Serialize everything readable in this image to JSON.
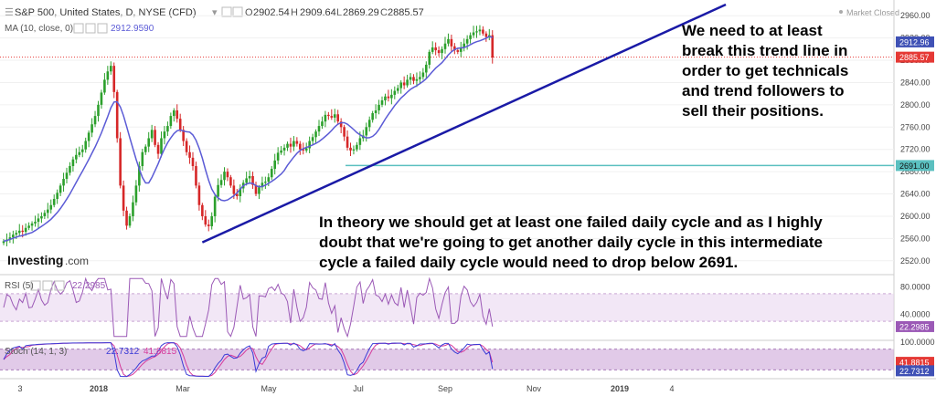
{
  "header": {
    "symbol": "S&P 500, United States, D, NYSE (CFD)",
    "open_label": "O",
    "open": "2902.54",
    "high_label": "H",
    "high": "2909.64",
    "low_label": "L",
    "low": "2869.29",
    "close_label": "C",
    "close": "2885.57",
    "ma_label": "MA (10, close, 0)",
    "ma_value": "2912.9590",
    "market_status": "Market Closed"
  },
  "brand": {
    "name": "Investing",
    "suffix": ".com"
  },
  "annotations": {
    "top": [
      "We need to at least",
      "break this trend line in",
      "order to get technicals",
      "and trend followers to",
      "sell their positions."
    ],
    "bottom": [
      "In theory we should get at least one failed daily cycle and as I highly",
      "doubt that we're going to get another daily cycle in this intermediate",
      "cycle a failed daily cycle would need to drop below 2691."
    ]
  },
  "colors": {
    "up": "#2ca02c",
    "down": "#d62728",
    "ma": "#5b5bd6",
    "trendline": "#1a1aa6",
    "support": "#5bc0c0",
    "rsi": "#9b59b6",
    "stoch_k": "#3a3ad6",
    "stoch_d": "#d63a9b",
    "band": "#e8d3ee",
    "price_tag": "#e53935",
    "ma_tag": "#3f51b5"
  },
  "chart_data": [
    {
      "type": "candlestick",
      "title": "S&P 500, United States, D, NYSE (CFD)",
      "ylim": [
        2500,
        2980
      ],
      "y_ticks": [
        "2960.00",
        "2920.00",
        "2880.00",
        "2840.00",
        "2800.00",
        "2760.00",
        "2720.00",
        "2680.00",
        "2640.00",
        "2600.00",
        "2560.00",
        "2520.00"
      ],
      "x_ticks": [
        "3",
        "2018",
        "Mar",
        "May",
        "Jul",
        "Sep",
        "Nov",
        "2019",
        "4"
      ],
      "closes": [
        2555,
        2558,
        2562,
        2567,
        2570,
        2574,
        2572,
        2579,
        2583,
        2587,
        2590,
        2596,
        2600,
        2606,
        2612,
        2620,
        2631,
        2642,
        2655,
        2667,
        2678,
        2690,
        2702,
        2710,
        2715,
        2720,
        2735,
        2750,
        2765,
        2780,
        2800,
        2822,
        2845,
        2860,
        2870,
        2823,
        2740,
        2655,
        2610,
        2583,
        2600,
        2625,
        2655,
        2690,
        2715,
        2725,
        2740,
        2755,
        2728,
        2712,
        2740,
        2752,
        2762,
        2780,
        2790,
        2775,
        2755,
        2735,
        2715,
        2705,
        2690,
        2655,
        2620,
        2600,
        2585,
        2582,
        2600,
        2635,
        2656,
        2665,
        2680,
        2670,
        2655,
        2640,
        2636,
        2650,
        2660,
        2668,
        2672,
        2656,
        2640,
        2652,
        2660,
        2662,
        2670,
        2685,
        2700,
        2714,
        2718,
        2723,
        2730,
        2725,
        2735,
        2730,
        2720,
        2718,
        2722,
        2735,
        2742,
        2752,
        2762,
        2770,
        2782,
        2780,
        2777,
        2783,
        2770,
        2760,
        2743,
        2723,
        2718,
        2720,
        2728,
        2740,
        2745,
        2760,
        2773,
        2785,
        2790,
        2800,
        2808,
        2815,
        2812,
        2818,
        2825,
        2830,
        2840,
        2835,
        2845,
        2850,
        2843,
        2846,
        2850,
        2858,
        2872,
        2895,
        2903,
        2898,
        2893,
        2900,
        2910,
        2918,
        2905,
        2898,
        2895,
        2902,
        2910,
        2918,
        2925,
        2930,
        2932,
        2935,
        2928,
        2922,
        2925,
        2885
      ],
      "ma_value": 2912.959,
      "series": [
        {
          "name": "MA (10, close, 0)",
          "last": 2912.96
        }
      ],
      "levels": [
        {
          "label": "2885.57",
          "value": 2885.57
        },
        {
          "label": "2912.96",
          "value": 2912.96
        },
        {
          "label": "2691.00",
          "value": 2691.0
        }
      ],
      "trendline": {
        "from": {
          "x": 63,
          "y": 2553
        },
        "to": {
          "x": 229,
          "y": 2980
        }
      }
    },
    {
      "type": "line",
      "title": "RSI (5)",
      "value_label": "22.2985",
      "ylim": [
        5,
        95
      ],
      "y_ticks": [
        "80.0000",
        "40.0000"
      ],
      "band": [
        30,
        70
      ],
      "last": 22.2985
    },
    {
      "type": "line",
      "title": "Stoch (14, 1, 3)",
      "k_label": "22.7312",
      "d_label": "41.8815",
      "ylim": [
        0,
        100
      ],
      "y_ticks": [
        "100.0000"
      ],
      "band": [
        20,
        80
      ],
      "k_last": 22.7312,
      "d_last": 41.8815
    }
  ]
}
